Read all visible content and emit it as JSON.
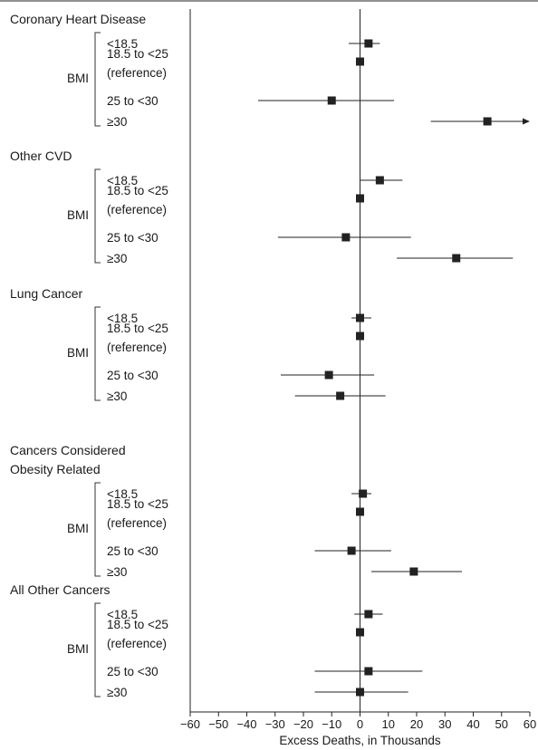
{
  "chart_data": {
    "type": "forest",
    "xlabel": "Excess Deaths, in Thousands",
    "xlim": [
      -60,
      60
    ],
    "xticks": [
      "−60",
      "−50",
      "−40",
      "−30",
      "−20",
      "−10",
      "0",
      "10",
      "20",
      "30",
      "40",
      "50",
      "60"
    ],
    "xtick_values": [
      -60,
      -50,
      -40,
      -30,
      -20,
      -10,
      0,
      10,
      20,
      30,
      40,
      50,
      60
    ],
    "bracket_label": "BMI",
    "reference_line": 0,
    "groups": [
      {
        "title": [
          "Coronary Heart Disease"
        ],
        "rows": [
          {
            "label": [
              "<18.5"
            ],
            "est": 3,
            "lo": -4,
            "hi": 7
          },
          {
            "label": [
              "18.5 to <25",
              "(reference)"
            ],
            "est": 0,
            "lo": 0,
            "hi": 0
          },
          {
            "label": [
              "25 to <30"
            ],
            "est": -10,
            "lo": -36,
            "hi": 12
          },
          {
            "label": [
              "≥30"
            ],
            "est": 45,
            "lo": 25,
            "hi": 60,
            "arrow_right": true
          }
        ]
      },
      {
        "title": [
          "Other CVD"
        ],
        "rows": [
          {
            "label": [
              "<18.5"
            ],
            "est": 7,
            "lo": 0,
            "hi": 15
          },
          {
            "label": [
              "18.5 to <25",
              "(reference)"
            ],
            "est": 0,
            "lo": 0,
            "hi": 0
          },
          {
            "label": [
              "25 to <30"
            ],
            "est": -5,
            "lo": -29,
            "hi": 18
          },
          {
            "label": [
              "≥30"
            ],
            "est": 34,
            "lo": 13,
            "hi": 54
          }
        ]
      },
      {
        "title": [
          "Lung Cancer"
        ],
        "rows": [
          {
            "label": [
              "<18.5"
            ],
            "est": 0,
            "lo": -3,
            "hi": 4
          },
          {
            "label": [
              "18.5 to <25",
              "(reference)"
            ],
            "est": 0,
            "lo": 0,
            "hi": 0
          },
          {
            "label": [
              "25 to <30"
            ],
            "est": -11,
            "lo": -28,
            "hi": 5
          },
          {
            "label": [
              "≥30"
            ],
            "est": -7,
            "lo": -23,
            "hi": 9
          }
        ]
      },
      {
        "title": [
          "Cancers Considered",
          "Obesity Related"
        ],
        "rows": [
          {
            "label": [
              "<18.5"
            ],
            "est": 1,
            "lo": -3,
            "hi": 4
          },
          {
            "label": [
              "18.5 to <25",
              "(reference)"
            ],
            "est": 0,
            "lo": 0,
            "hi": 0
          },
          {
            "label": [
              "25 to <30"
            ],
            "est": -3,
            "lo": -16,
            "hi": 11
          },
          {
            "label": [
              "≥30"
            ],
            "est": 19,
            "lo": 4,
            "hi": 36
          }
        ]
      },
      {
        "title": [
          "All Other Cancers"
        ],
        "rows": [
          {
            "label": [
              "<18.5"
            ],
            "est": 3,
            "lo": -2,
            "hi": 8
          },
          {
            "label": [
              "18.5 to <25",
              "(reference)"
            ],
            "est": 0,
            "lo": 0,
            "hi": 0
          },
          {
            "label": [
              "25 to <30"
            ],
            "est": 3,
            "lo": -16,
            "hi": 22
          },
          {
            "label": [
              "≥30"
            ],
            "est": 0,
            "lo": -16,
            "hi": 17
          }
        ]
      }
    ]
  }
}
